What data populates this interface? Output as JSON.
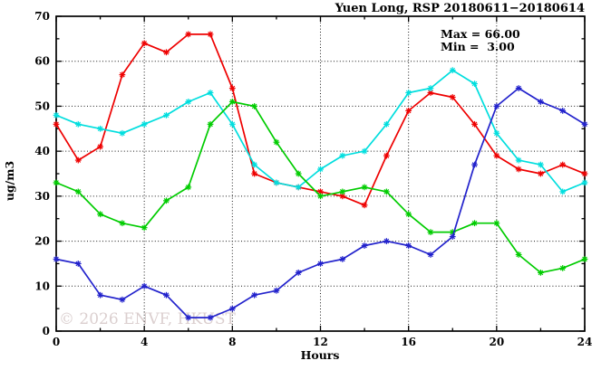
{
  "chart_data": {
    "type": "line",
    "title": "Yuen Long, RSP 20180611−20180614",
    "xlabel": "Hours",
    "ylabel": "ug/m3",
    "annotations": {
      "max": "Max = 66.00",
      "min": "Min =  3.00"
    },
    "watermark": "© 2026 ENVF, HKUST",
    "xlim": [
      0,
      24
    ],
    "ylim": [
      0,
      70
    ],
    "x_major_ticks": [
      0,
      4,
      8,
      12,
      16,
      20,
      24
    ],
    "x_tick_labels": [
      "0",
      "4",
      "8",
      "12",
      "16",
      "20",
      "24"
    ],
    "x_minor_ticks": [
      2,
      6,
      10,
      14,
      18,
      22
    ],
    "y_major_ticks": [
      0,
      10,
      20,
      30,
      40,
      50,
      60,
      70
    ],
    "y_tick_labels": [
      "0",
      "10",
      "20",
      "30",
      "40",
      "50",
      "60",
      "70"
    ],
    "y_minor_ticks": [
      5,
      15,
      25,
      35,
      45,
      55,
      65
    ],
    "grid": {
      "x_lines": [
        4,
        8,
        12,
        16,
        20
      ],
      "y_lines": [
        10,
        20,
        30,
        40,
        50,
        60
      ],
      "style": "dotted"
    },
    "legend": "none",
    "x": [
      0,
      1,
      2,
      3,
      4,
      5,
      6,
      7,
      8,
      9,
      10,
      11,
      12,
      13,
      14,
      15,
      16,
      17,
      18,
      19,
      20,
      21,
      22,
      23,
      24
    ],
    "series": [
      {
        "name": "red",
        "color": "#ee0000",
        "marker": "asterisk",
        "values": [
          46,
          38,
          41,
          57,
          64,
          62,
          66,
          66,
          54,
          35,
          33,
          32,
          31,
          30,
          28,
          39,
          49,
          53,
          52,
          46,
          39,
          36,
          35,
          37,
          35
        ]
      },
      {
        "name": "cyan",
        "color": "#00dede",
        "marker": "asterisk",
        "values": [
          48,
          46,
          45,
          44,
          46,
          48,
          51,
          53,
          46,
          37,
          33,
          32,
          36,
          39,
          40,
          46,
          53,
          54,
          58,
          55,
          44,
          38,
          37,
          31,
          33
        ]
      },
      {
        "name": "green",
        "color": "#00cc00",
        "marker": "asterisk",
        "values": [
          33,
          31,
          26,
          24,
          23,
          29,
          32,
          46,
          51,
          50,
          42,
          35,
          30,
          31,
          32,
          31,
          26,
          22,
          22,
          24,
          24,
          17,
          13,
          14,
          16
        ]
      },
      {
        "name": "blue",
        "color": "#2222cc",
        "marker": "asterisk",
        "values": [
          16,
          15,
          8,
          7,
          10,
          8,
          3,
          3,
          5,
          8,
          9,
          13,
          15,
          16,
          19,
          20,
          19,
          17,
          21,
          37,
          50,
          54,
          51,
          49,
          46
        ]
      }
    ]
  }
}
